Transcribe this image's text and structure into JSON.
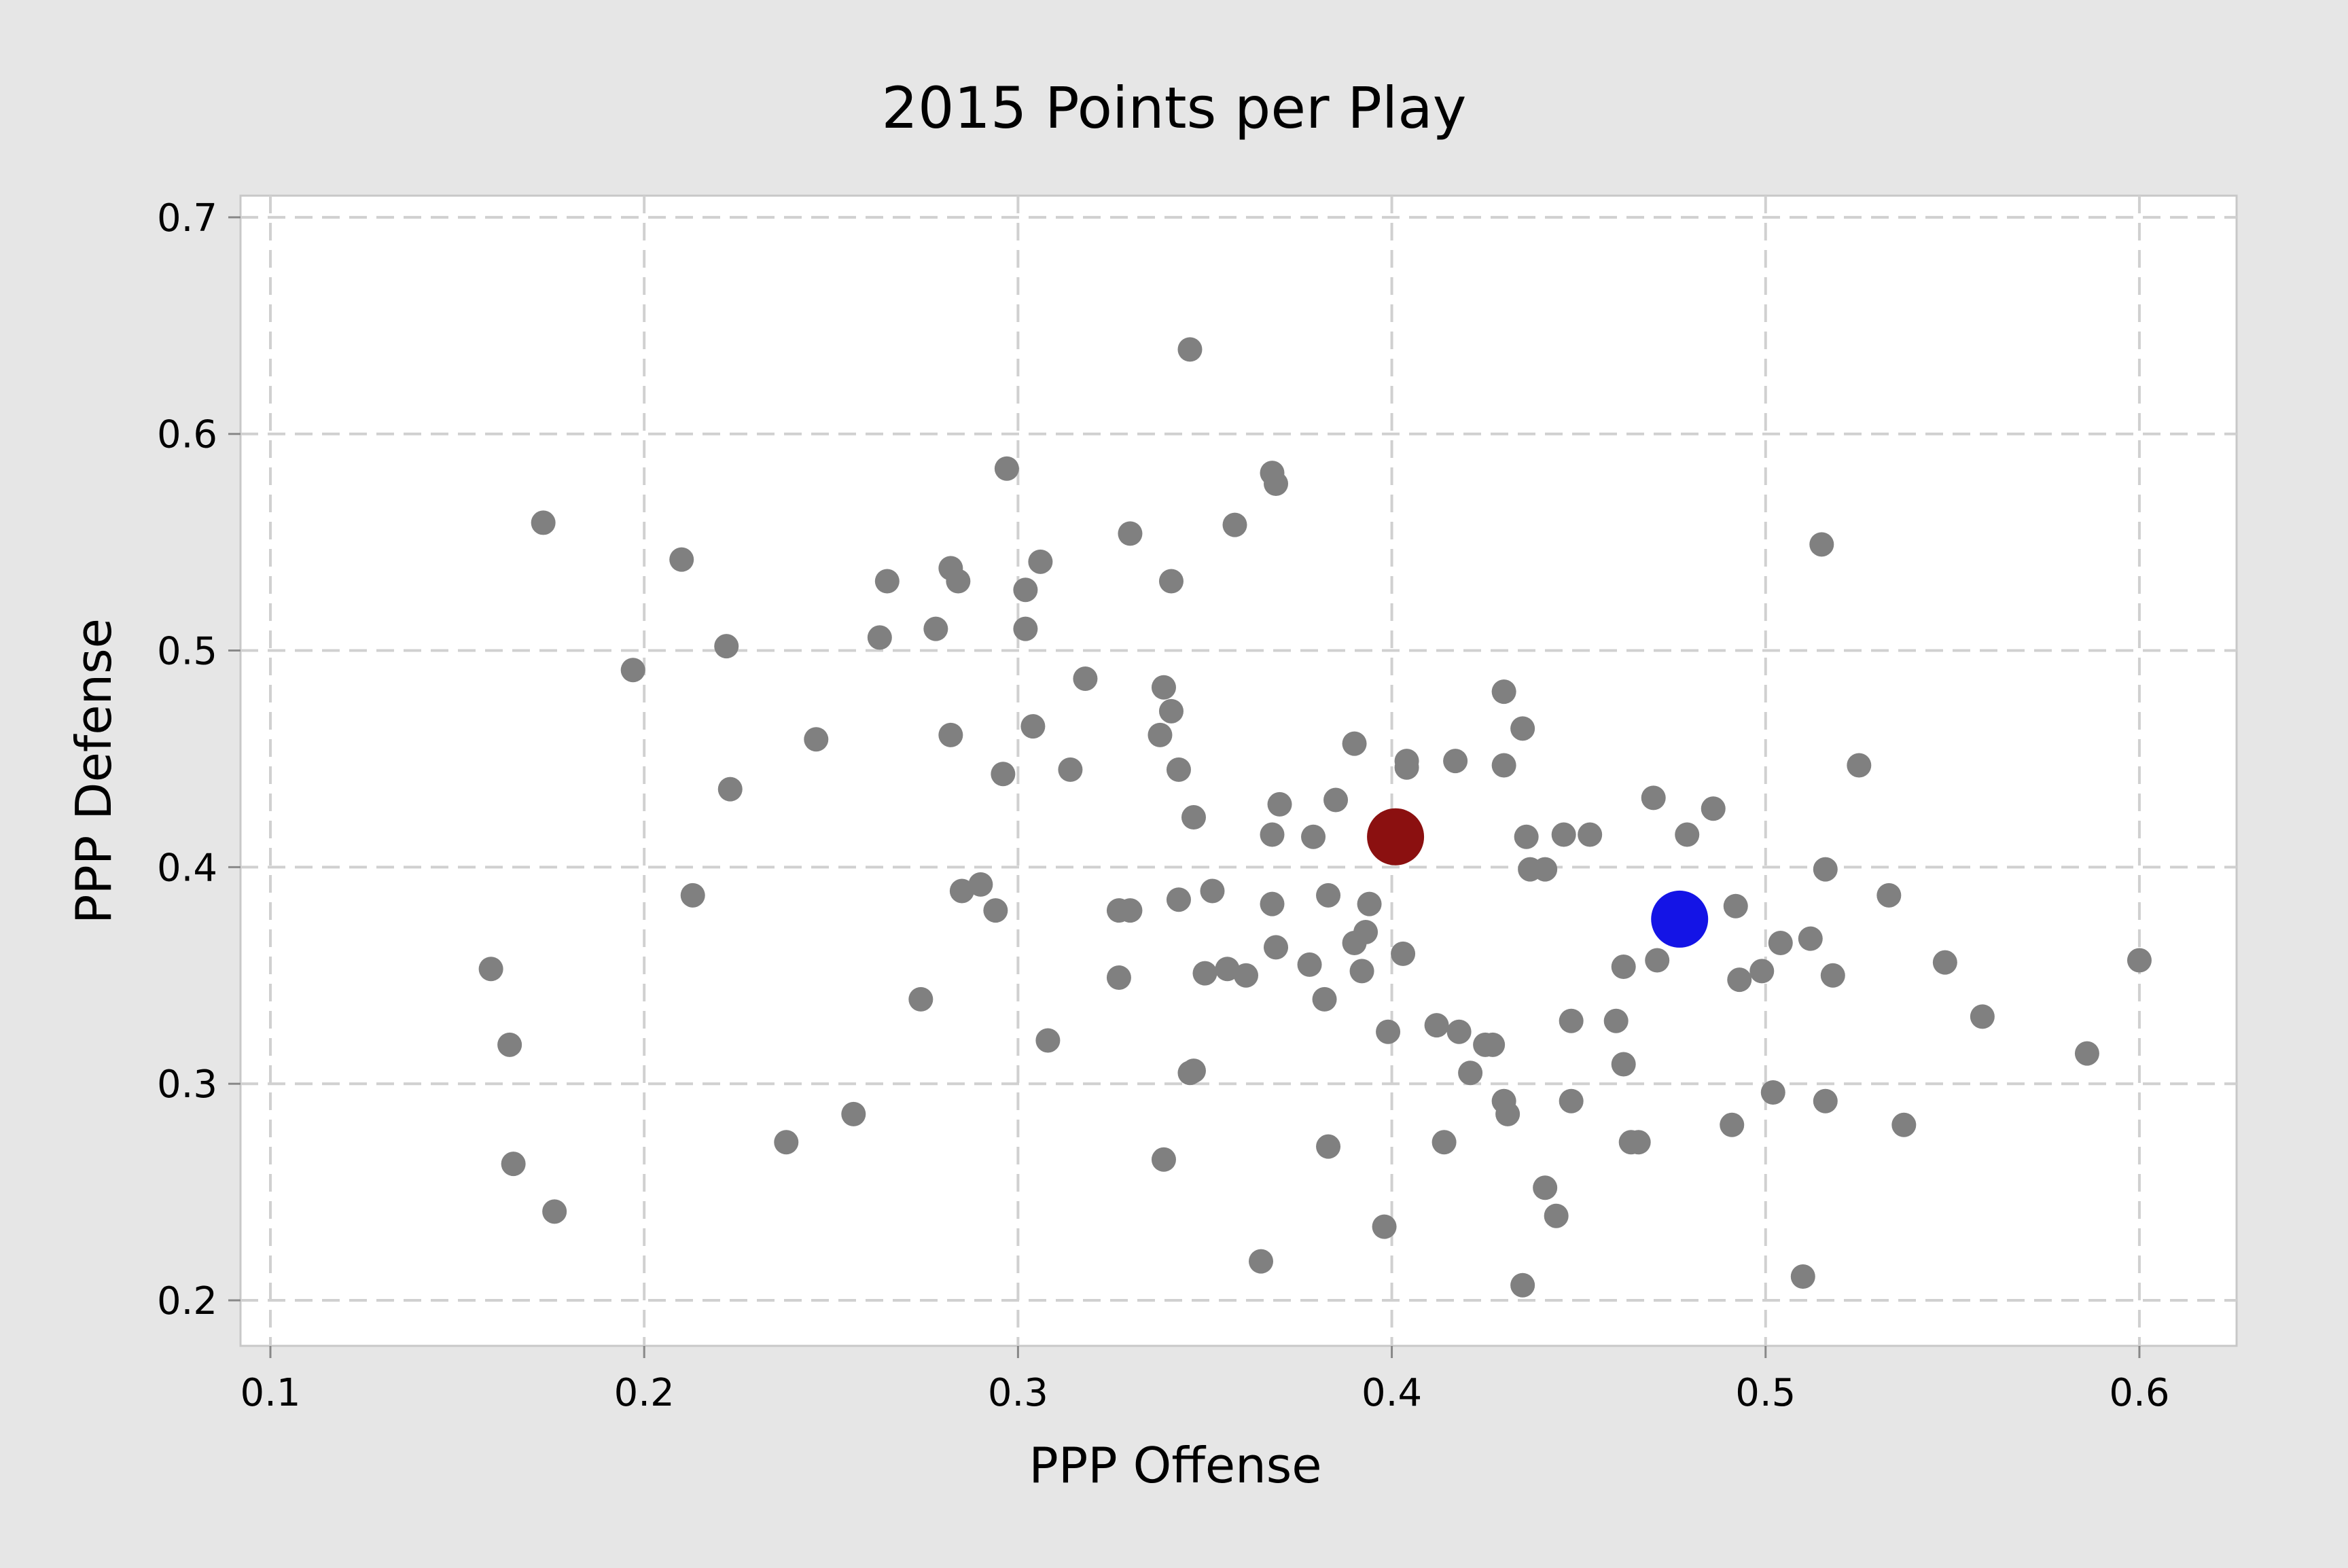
{
  "chart_data": {
    "type": "scatter",
    "title": "2015 Points per Play",
    "xlabel": "PPP Offense",
    "ylabel": "PPP Defense",
    "xlim": [
      0.092,
      0.626
    ],
    "ylim": [
      0.179,
      0.71
    ],
    "xticks": [
      0.1,
      0.2,
      0.3,
      0.4,
      0.5,
      0.6
    ],
    "yticks": [
      0.2,
      0.3,
      0.4,
      0.5,
      0.6,
      0.7
    ],
    "xtick_labels": [
      "0.1",
      "0.2",
      "0.3",
      "0.4",
      "0.5",
      "0.6"
    ],
    "ytick_labels": [
      "0.2",
      "0.3",
      "0.4",
      "0.5",
      "0.6",
      "0.7"
    ],
    "grid": true,
    "colors": {
      "points": "#808080",
      "highlight_red": "#8b1010",
      "highlight_blue": "#1414e6"
    },
    "points": [
      [
        0.173,
        0.559
      ],
      [
        0.197,
        0.491
      ],
      [
        0.21,
        0.542
      ],
      [
        0.222,
        0.502
      ],
      [
        0.223,
        0.436
      ],
      [
        0.213,
        0.387
      ],
      [
        0.159,
        0.353
      ],
      [
        0.164,
        0.318
      ],
      [
        0.165,
        0.263
      ],
      [
        0.176,
        0.241
      ],
      [
        0.238,
        0.273
      ],
      [
        0.246,
        0.459
      ],
      [
        0.256,
        0.286
      ],
      [
        0.263,
        0.506
      ],
      [
        0.265,
        0.532
      ],
      [
        0.274,
        0.339
      ],
      [
        0.278,
        0.51
      ],
      [
        0.282,
        0.538
      ],
      [
        0.284,
        0.532
      ],
      [
        0.282,
        0.461
      ],
      [
        0.285,
        0.389
      ],
      [
        0.29,
        0.392
      ],
      [
        0.294,
        0.38
      ],
      [
        0.297,
        0.584
      ],
      [
        0.296,
        0.443
      ],
      [
        0.302,
        0.528
      ],
      [
        0.302,
        0.51
      ],
      [
        0.306,
        0.541
      ],
      [
        0.304,
        0.465
      ],
      [
        0.308,
        0.32
      ],
      [
        0.314,
        0.445
      ],
      [
        0.318,
        0.487
      ],
      [
        0.327,
        0.38
      ],
      [
        0.33,
        0.38
      ],
      [
        0.327,
        0.349
      ],
      [
        0.33,
        0.554
      ],
      [
        0.341,
        0.532
      ],
      [
        0.339,
        0.483
      ],
      [
        0.341,
        0.472
      ],
      [
        0.338,
        0.461
      ],
      [
        0.343,
        0.445
      ],
      [
        0.343,
        0.385
      ],
      [
        0.339,
        0.265
      ],
      [
        0.346,
        0.639
      ],
      [
        0.347,
        0.423
      ],
      [
        0.347,
        0.306
      ],
      [
        0.346,
        0.305
      ],
      [
        0.35,
        0.351
      ],
      [
        0.352,
        0.389
      ],
      [
        0.356,
        0.353
      ],
      [
        0.358,
        0.558
      ],
      [
        0.361,
        0.35
      ],
      [
        0.365,
        0.218
      ],
      [
        0.368,
        0.582
      ],
      [
        0.369,
        0.577
      ],
      [
        0.37,
        0.429
      ],
      [
        0.368,
        0.415
      ],
      [
        0.368,
        0.383
      ],
      [
        0.369,
        0.363
      ],
      [
        0.379,
        0.414
      ],
      [
        0.378,
        0.355
      ],
      [
        0.382,
        0.339
      ],
      [
        0.383,
        0.387
      ],
      [
        0.383,
        0.271
      ],
      [
        0.385,
        0.431
      ],
      [
        0.39,
        0.457
      ],
      [
        0.39,
        0.365
      ],
      [
        0.392,
        0.352
      ],
      [
        0.393,
        0.37
      ],
      [
        0.394,
        0.383
      ],
      [
        0.399,
        0.324
      ],
      [
        0.398,
        0.234
      ],
      [
        0.403,
        0.36
      ],
      [
        0.404,
        0.449
      ],
      [
        0.404,
        0.446
      ],
      [
        0.412,
        0.327
      ],
      [
        0.414,
        0.273
      ],
      [
        0.417,
        0.449
      ],
      [
        0.418,
        0.324
      ],
      [
        0.421,
        0.305
      ],
      [
        0.425,
        0.318
      ],
      [
        0.427,
        0.318
      ],
      [
        0.43,
        0.481
      ],
      [
        0.43,
        0.447
      ],
      [
        0.43,
        0.292
      ],
      [
        0.431,
        0.286
      ],
      [
        0.435,
        0.464
      ],
      [
        0.436,
        0.414
      ],
      [
        0.437,
        0.399
      ],
      [
        0.441,
        0.399
      ],
      [
        0.435,
        0.207
      ],
      [
        0.441,
        0.252
      ],
      [
        0.444,
        0.239
      ],
      [
        0.446,
        0.415
      ],
      [
        0.448,
        0.329
      ],
      [
        0.448,
        0.292
      ],
      [
        0.453,
        0.415
      ],
      [
        0.46,
        0.329
      ],
      [
        0.462,
        0.354
      ],
      [
        0.462,
        0.309
      ],
      [
        0.464,
        0.273
      ],
      [
        0.466,
        0.273
      ],
      [
        0.47,
        0.432
      ],
      [
        0.471,
        0.357
      ],
      [
        0.479,
        0.415
      ],
      [
        0.486,
        0.427
      ],
      [
        0.491,
        0.281
      ],
      [
        0.492,
        0.382
      ],
      [
        0.493,
        0.348
      ],
      [
        0.499,
        0.352
      ],
      [
        0.502,
        0.296
      ],
      [
        0.504,
        0.365
      ],
      [
        0.51,
        0.211
      ],
      [
        0.512,
        0.367
      ],
      [
        0.515,
        0.549
      ],
      [
        0.516,
        0.399
      ],
      [
        0.516,
        0.292
      ],
      [
        0.518,
        0.35
      ],
      [
        0.525,
        0.447
      ],
      [
        0.533,
        0.387
      ],
      [
        0.537,
        0.281
      ],
      [
        0.548,
        0.356
      ],
      [
        0.558,
        0.331
      ],
      [
        0.586,
        0.314
      ],
      [
        0.6,
        0.357
      ]
    ],
    "highlighted": [
      {
        "x": 0.401,
        "y": 0.414,
        "color": "#8b1010"
      },
      {
        "x": 0.477,
        "y": 0.376,
        "color": "#1414e6"
      }
    ]
  }
}
